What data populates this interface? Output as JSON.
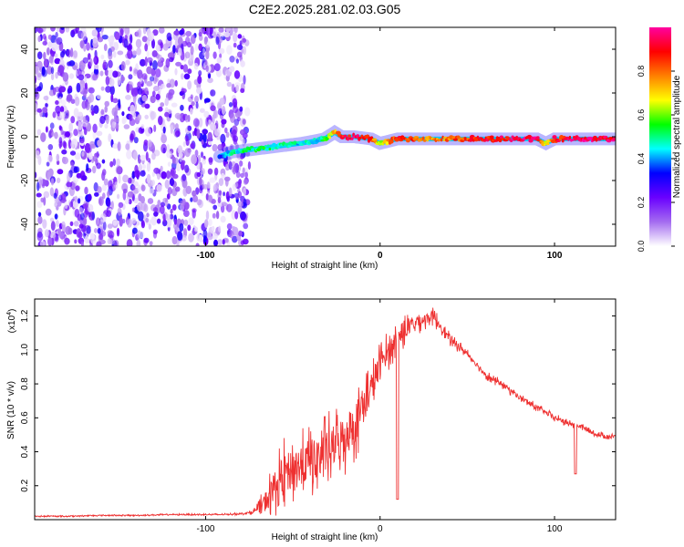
{
  "title": "C2E2.2025.281.02.03.G05",
  "chart_data": [
    {
      "type": "heatmap",
      "name": "spectrogram",
      "xlabel": "Height of straight line (km)",
      "ylabel": "Frequency (Hz)",
      "xlim": [
        -198,
        135
      ],
      "ylim": [
        -50,
        50
      ],
      "xticks": [
        -100,
        0,
        100
      ],
      "yticks": [
        -40,
        -20,
        0,
        20,
        40
      ],
      "noise_region": {
        "x_start": -198,
        "x_end": -76,
        "description_values": "scattered low-amplitude noise 0.0-0.3"
      },
      "signal_track": {
        "description": "frequency of the dominant spectral line vs height",
        "x": [
          -92,
          -85,
          -75,
          -65,
          -55,
          -45,
          -38,
          -32,
          -26,
          -22,
          -15,
          -5,
          0,
          10,
          30,
          50,
          70,
          90,
          95,
          100,
          105,
          110,
          120,
          135
        ],
        "frequency": [
          -9,
          -7,
          -6,
          -5,
          -4,
          -3,
          -2,
          -1,
          2,
          0,
          0,
          -1,
          -3,
          -1,
          -1,
          -1,
          -1,
          -1,
          -3,
          -1,
          -1,
          -1,
          -1,
          -1
        ],
        "amplitude": [
          0.3,
          0.45,
          0.5,
          0.5,
          0.5,
          0.45,
          0.4,
          0.55,
          0.7,
          0.85,
          0.95,
          0.85,
          0.6,
          0.9,
          0.75,
          0.85,
          0.9,
          0.95,
          0.6,
          0.9,
          0.85,
          0.95,
          0.95,
          0.95
        ]
      },
      "colorbar": {
        "label": "Normalized spectral amplitude",
        "range": [
          0,
          1
        ],
        "ticks": [
          "0.0",
          "0.2",
          "0.4",
          "0.6",
          "0.8"
        ],
        "tick_values": [
          0,
          0.2,
          0.4,
          0.6,
          0.8
        ],
        "colors": [
          "#ffffff",
          "#a46cf0",
          "#6a00ff",
          "#0000ff",
          "#00ffff",
          "#00ff00",
          "#ffff00",
          "#ff8000",
          "#ff0000",
          "#ff00a0"
        ]
      }
    },
    {
      "type": "line",
      "name": "snr",
      "xlabel": "Height of straight line (km)",
      "ylabel": "SNR (10 * v/v)",
      "y_multiplier_label": "(x10",
      "y_multiplier_exp": "4",
      "xlim": [
        -198,
        135
      ],
      "ylim": [
        0.0,
        1.3
      ],
      "xticks": [
        -100,
        0,
        100
      ],
      "yticks": [
        0.2,
        0.4,
        0.6,
        0.8,
        1.0,
        1.2
      ],
      "ytick_labels": [
        "0.2",
        "0.4",
        "0.6",
        "0.8",
        "1.0",
        "1.2"
      ],
      "series": [
        {
          "name": "SNR",
          "color": "#ee3030",
          "x": [
            -198,
            -180,
            -160,
            -140,
            -120,
            -100,
            -90,
            -80,
            -75,
            -70,
            -65,
            -60,
            -55,
            -50,
            -45,
            -40,
            -35,
            -30,
            -25,
            -20,
            -15,
            -10,
            -5,
            0,
            5,
            10,
            15,
            20,
            25,
            30,
            35,
            40,
            45,
            50,
            55,
            60,
            65,
            70,
            75,
            80,
            85,
            90,
            95,
            100,
            105,
            110,
            115,
            120,
            125,
            130,
            135
          ],
          "y": [
            0.02,
            0.02,
            0.025,
            0.025,
            0.03,
            0.03,
            0.03,
            0.035,
            0.04,
            0.06,
            0.12,
            0.2,
            0.27,
            0.3,
            0.32,
            0.34,
            0.38,
            0.4,
            0.45,
            0.5,
            0.56,
            0.66,
            0.78,
            0.92,
            1.0,
            1.07,
            1.12,
            1.16,
            1.18,
            1.2,
            1.14,
            1.06,
            1.02,
            0.98,
            0.92,
            0.86,
            0.82,
            0.8,
            0.76,
            0.72,
            0.69,
            0.66,
            0.63,
            0.6,
            0.58,
            0.56,
            0.55,
            0.52,
            0.5,
            0.49,
            0.49
          ],
          "noise_amplitude": [
            0.005,
            0.005,
            0.005,
            0.005,
            0.005,
            0.006,
            0.006,
            0.008,
            0.01,
            0.04,
            0.12,
            0.18,
            0.22,
            0.22,
            0.22,
            0.22,
            0.22,
            0.24,
            0.24,
            0.26,
            0.24,
            0.22,
            0.18,
            0.14,
            0.12,
            0.12,
            0.1,
            0.08,
            0.07,
            0.06,
            0.05,
            0.04,
            0.035,
            0.03,
            0.03,
            0.03,
            0.03,
            0.03,
            0.03,
            0.025,
            0.025,
            0.025,
            0.025,
            0.025,
            0.025,
            0.025,
            0.02,
            0.02,
            0.02,
            0.02,
            0.02
          ]
        }
      ],
      "annotations": [
        {
          "x": 10,
          "y": 0.12,
          "note": "sharp dip"
        },
        {
          "x": 112,
          "y": 0.27,
          "note": "sharp dip"
        }
      ]
    }
  ]
}
